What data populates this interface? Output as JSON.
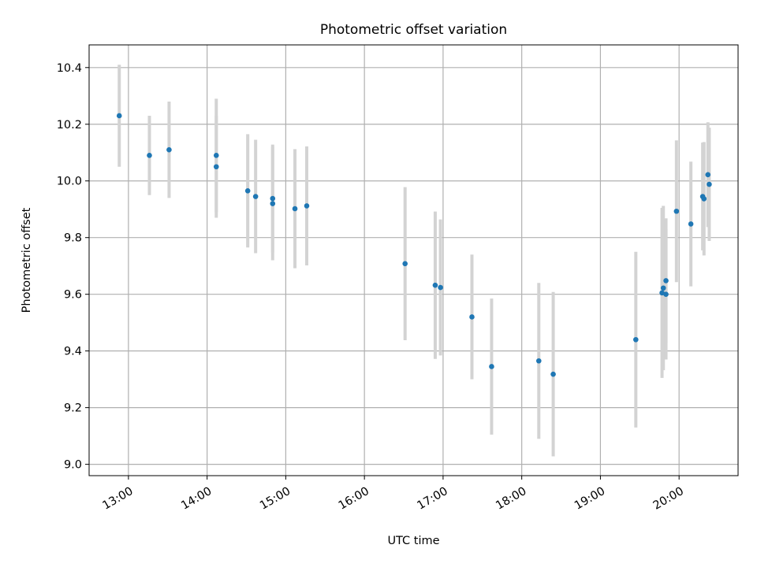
{
  "chart_data": {
    "type": "scatter",
    "title": "Photometric offset variation",
    "xlabel": "UTC time",
    "ylabel": "Photometric offset",
    "xlim": [
      "12:30",
      "20:45"
    ],
    "ylim": [
      8.96,
      10.48
    ],
    "x_ticks": [
      "13:00",
      "14:00",
      "15:00",
      "16:00",
      "17:00",
      "18:00",
      "19:00",
      "20:00"
    ],
    "y_ticks": [
      "9.0",
      "9.2",
      "9.4",
      "9.6",
      "9.8",
      "10.0",
      "10.2",
      "10.4"
    ],
    "grid": true,
    "colors": {
      "point": "#1f77b4",
      "errorbar": "#d3d3d3",
      "grid": "#b0b0b0"
    },
    "points": [
      {
        "x": "12:53",
        "y": 10.23,
        "err": 0.18
      },
      {
        "x": "13:16",
        "y": 10.09,
        "err": 0.14
      },
      {
        "x": "13:31",
        "y": 10.11,
        "err": 0.17
      },
      {
        "x": "14:07",
        "y": 10.09,
        "err": 0.2
      },
      {
        "x": "14:07",
        "y": 10.05,
        "err": 0.18
      },
      {
        "x": "14:31",
        "y": 9.965,
        "err": 0.2
      },
      {
        "x": "14:37",
        "y": 9.945,
        "err": 0.2
      },
      {
        "x": "14:50",
        "y": 9.938,
        "err": 0.19
      },
      {
        "x": "14:50",
        "y": 9.92,
        "err": 0.2
      },
      {
        "x": "15:07",
        "y": 9.902,
        "err": 0.21
      },
      {
        "x": "15:16",
        "y": 9.912,
        "err": 0.21
      },
      {
        "x": "16:31",
        "y": 9.708,
        "err": 0.27
      },
      {
        "x": "16:54",
        "y": 9.632,
        "err": 0.26
      },
      {
        "x": "16:58",
        "y": 9.624,
        "err": 0.24
      },
      {
        "x": "17:22",
        "y": 9.52,
        "err": 0.22
      },
      {
        "x": "17:37",
        "y": 9.345,
        "err": 0.24
      },
      {
        "x": "18:13",
        "y": 9.365,
        "err": 0.275
      },
      {
        "x": "18:24",
        "y": 9.318,
        "err": 0.29
      },
      {
        "x": "19:27",
        "y": 9.44,
        "err": 0.31
      },
      {
        "x": "19:47",
        "y": 9.605,
        "err": 0.3
      },
      {
        "x": "19:48",
        "y": 9.622,
        "err": 0.29
      },
      {
        "x": "19:50",
        "y": 9.6,
        "err": 0.23
      },
      {
        "x": "19:50",
        "y": 9.648,
        "err": 0.22
      },
      {
        "x": "19:58",
        "y": 9.893,
        "err": 0.25
      },
      {
        "x": "20:09",
        "y": 9.848,
        "err": 0.22
      },
      {
        "x": "20:18",
        "y": 9.945,
        "err": 0.19
      },
      {
        "x": "20:19",
        "y": 9.937,
        "err": 0.2
      },
      {
        "x": "20:22",
        "y": 10.022,
        "err": 0.185
      },
      {
        "x": "20:23",
        "y": 9.988,
        "err": 0.2
      }
    ]
  }
}
